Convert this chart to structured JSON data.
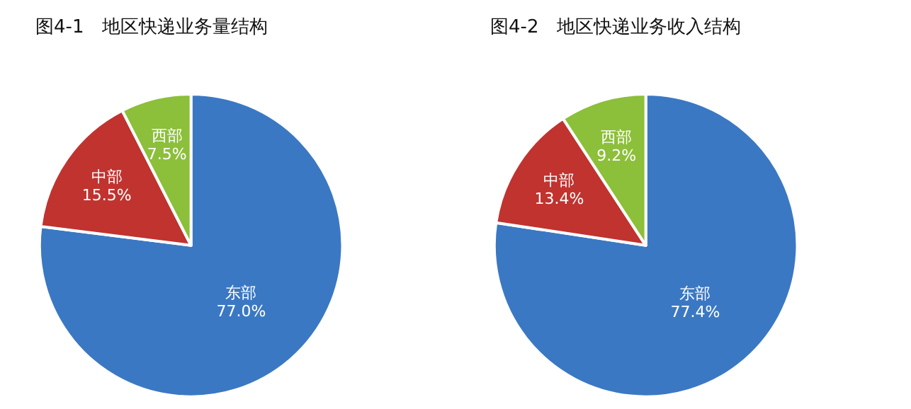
{
  "chart_data": [
    {
      "type": "pie",
      "title": "图4-1　地区快递业务量结构",
      "categories": [
        "东部",
        "中部",
        "西部"
      ],
      "values": [
        77.0,
        15.5,
        7.5
      ],
      "colors": [
        "#3b78c3",
        "#c0332f",
        "#8cbf3a"
      ],
      "value_labels": [
        "77.0%",
        "15.5%",
        "7.5%"
      ]
    },
    {
      "type": "pie",
      "title": "图4-2　地区快递业务收入结构",
      "categories": [
        "东部",
        "中部",
        "西部"
      ],
      "values": [
        77.4,
        13.4,
        9.2
      ],
      "colors": [
        "#3b78c3",
        "#c0332f",
        "#8cbf3a"
      ],
      "value_labels": [
        "77.4%",
        "13.4%",
        "9.2%"
      ]
    }
  ]
}
